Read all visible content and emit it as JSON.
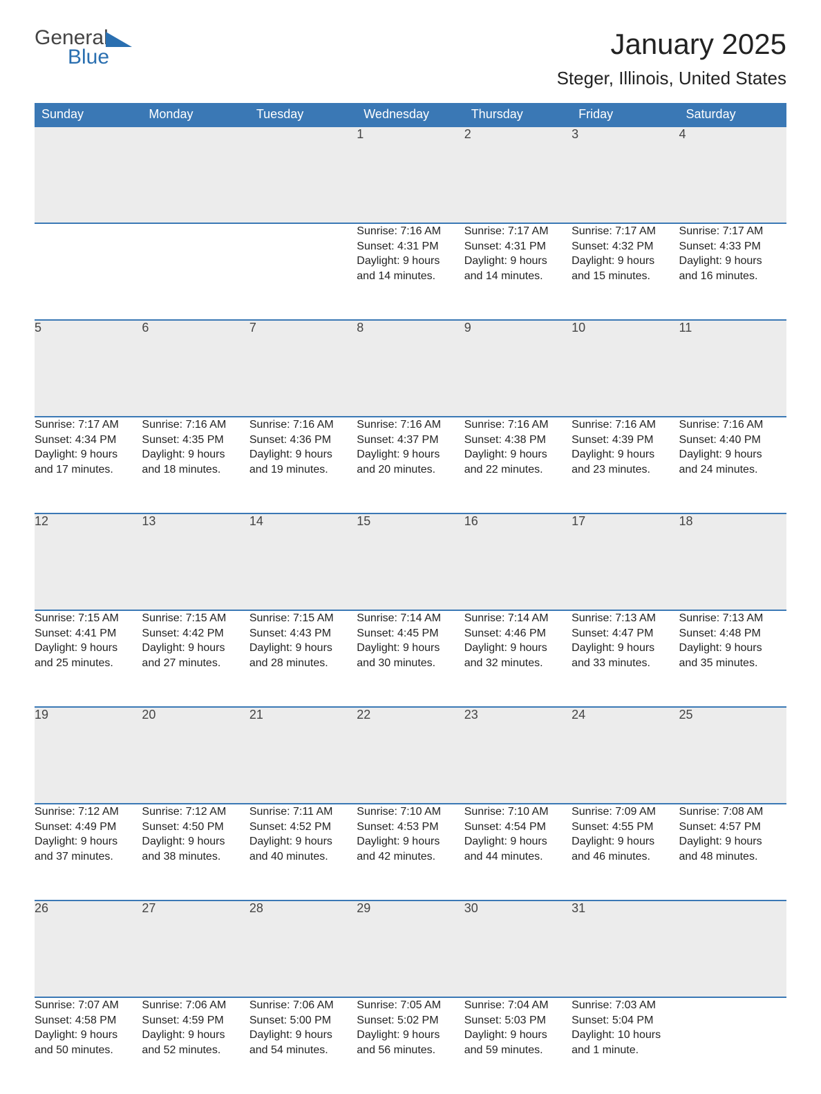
{
  "logo": {
    "word1": "General",
    "word2": "Blue"
  },
  "title": "January 2025",
  "location": "Steger, Illinois, United States",
  "colors": {
    "header_bg": "#3a78b5",
    "header_text": "#ffffff",
    "daynum_bg": "#ececec",
    "border": "#3a78b5",
    "body_text": "#222222",
    "logo_blue": "#2a6fb0",
    "logo_gray": "#444444",
    "page_bg": "#ffffff"
  },
  "day_headers": [
    "Sunday",
    "Monday",
    "Tuesday",
    "Wednesday",
    "Thursday",
    "Friday",
    "Saturday"
  ],
  "weeks": [
    [
      null,
      null,
      null,
      {
        "n": "1",
        "sunrise": "Sunrise: 7:16 AM",
        "sunset": "Sunset: 4:31 PM",
        "d1": "Daylight: 9 hours",
        "d2": "and 14 minutes."
      },
      {
        "n": "2",
        "sunrise": "Sunrise: 7:17 AM",
        "sunset": "Sunset: 4:31 PM",
        "d1": "Daylight: 9 hours",
        "d2": "and 14 minutes."
      },
      {
        "n": "3",
        "sunrise": "Sunrise: 7:17 AM",
        "sunset": "Sunset: 4:32 PM",
        "d1": "Daylight: 9 hours",
        "d2": "and 15 minutes."
      },
      {
        "n": "4",
        "sunrise": "Sunrise: 7:17 AM",
        "sunset": "Sunset: 4:33 PM",
        "d1": "Daylight: 9 hours",
        "d2": "and 16 minutes."
      }
    ],
    [
      {
        "n": "5",
        "sunrise": "Sunrise: 7:17 AM",
        "sunset": "Sunset: 4:34 PM",
        "d1": "Daylight: 9 hours",
        "d2": "and 17 minutes."
      },
      {
        "n": "6",
        "sunrise": "Sunrise: 7:16 AM",
        "sunset": "Sunset: 4:35 PM",
        "d1": "Daylight: 9 hours",
        "d2": "and 18 minutes."
      },
      {
        "n": "7",
        "sunrise": "Sunrise: 7:16 AM",
        "sunset": "Sunset: 4:36 PM",
        "d1": "Daylight: 9 hours",
        "d2": "and 19 minutes."
      },
      {
        "n": "8",
        "sunrise": "Sunrise: 7:16 AM",
        "sunset": "Sunset: 4:37 PM",
        "d1": "Daylight: 9 hours",
        "d2": "and 20 minutes."
      },
      {
        "n": "9",
        "sunrise": "Sunrise: 7:16 AM",
        "sunset": "Sunset: 4:38 PM",
        "d1": "Daylight: 9 hours",
        "d2": "and 22 minutes."
      },
      {
        "n": "10",
        "sunrise": "Sunrise: 7:16 AM",
        "sunset": "Sunset: 4:39 PM",
        "d1": "Daylight: 9 hours",
        "d2": "and 23 minutes."
      },
      {
        "n": "11",
        "sunrise": "Sunrise: 7:16 AM",
        "sunset": "Sunset: 4:40 PM",
        "d1": "Daylight: 9 hours",
        "d2": "and 24 minutes."
      }
    ],
    [
      {
        "n": "12",
        "sunrise": "Sunrise: 7:15 AM",
        "sunset": "Sunset: 4:41 PM",
        "d1": "Daylight: 9 hours",
        "d2": "and 25 minutes."
      },
      {
        "n": "13",
        "sunrise": "Sunrise: 7:15 AM",
        "sunset": "Sunset: 4:42 PM",
        "d1": "Daylight: 9 hours",
        "d2": "and 27 minutes."
      },
      {
        "n": "14",
        "sunrise": "Sunrise: 7:15 AM",
        "sunset": "Sunset: 4:43 PM",
        "d1": "Daylight: 9 hours",
        "d2": "and 28 minutes."
      },
      {
        "n": "15",
        "sunrise": "Sunrise: 7:14 AM",
        "sunset": "Sunset: 4:45 PM",
        "d1": "Daylight: 9 hours",
        "d2": "and 30 minutes."
      },
      {
        "n": "16",
        "sunrise": "Sunrise: 7:14 AM",
        "sunset": "Sunset: 4:46 PM",
        "d1": "Daylight: 9 hours",
        "d2": "and 32 minutes."
      },
      {
        "n": "17",
        "sunrise": "Sunrise: 7:13 AM",
        "sunset": "Sunset: 4:47 PM",
        "d1": "Daylight: 9 hours",
        "d2": "and 33 minutes."
      },
      {
        "n": "18",
        "sunrise": "Sunrise: 7:13 AM",
        "sunset": "Sunset: 4:48 PM",
        "d1": "Daylight: 9 hours",
        "d2": "and 35 minutes."
      }
    ],
    [
      {
        "n": "19",
        "sunrise": "Sunrise: 7:12 AM",
        "sunset": "Sunset: 4:49 PM",
        "d1": "Daylight: 9 hours",
        "d2": "and 37 minutes."
      },
      {
        "n": "20",
        "sunrise": "Sunrise: 7:12 AM",
        "sunset": "Sunset: 4:50 PM",
        "d1": "Daylight: 9 hours",
        "d2": "and 38 minutes."
      },
      {
        "n": "21",
        "sunrise": "Sunrise: 7:11 AM",
        "sunset": "Sunset: 4:52 PM",
        "d1": "Daylight: 9 hours",
        "d2": "and 40 minutes."
      },
      {
        "n": "22",
        "sunrise": "Sunrise: 7:10 AM",
        "sunset": "Sunset: 4:53 PM",
        "d1": "Daylight: 9 hours",
        "d2": "and 42 minutes."
      },
      {
        "n": "23",
        "sunrise": "Sunrise: 7:10 AM",
        "sunset": "Sunset: 4:54 PM",
        "d1": "Daylight: 9 hours",
        "d2": "and 44 minutes."
      },
      {
        "n": "24",
        "sunrise": "Sunrise: 7:09 AM",
        "sunset": "Sunset: 4:55 PM",
        "d1": "Daylight: 9 hours",
        "d2": "and 46 minutes."
      },
      {
        "n": "25",
        "sunrise": "Sunrise: 7:08 AM",
        "sunset": "Sunset: 4:57 PM",
        "d1": "Daylight: 9 hours",
        "d2": "and 48 minutes."
      }
    ],
    [
      {
        "n": "26",
        "sunrise": "Sunrise: 7:07 AM",
        "sunset": "Sunset: 4:58 PM",
        "d1": "Daylight: 9 hours",
        "d2": "and 50 minutes."
      },
      {
        "n": "27",
        "sunrise": "Sunrise: 7:06 AM",
        "sunset": "Sunset: 4:59 PM",
        "d1": "Daylight: 9 hours",
        "d2": "and 52 minutes."
      },
      {
        "n": "28",
        "sunrise": "Sunrise: 7:06 AM",
        "sunset": "Sunset: 5:00 PM",
        "d1": "Daylight: 9 hours",
        "d2": "and 54 minutes."
      },
      {
        "n": "29",
        "sunrise": "Sunrise: 7:05 AM",
        "sunset": "Sunset: 5:02 PM",
        "d1": "Daylight: 9 hours",
        "d2": "and 56 minutes."
      },
      {
        "n": "30",
        "sunrise": "Sunrise: 7:04 AM",
        "sunset": "Sunset: 5:03 PM",
        "d1": "Daylight: 9 hours",
        "d2": "and 59 minutes."
      },
      {
        "n": "31",
        "sunrise": "Sunrise: 7:03 AM",
        "sunset": "Sunset: 5:04 PM",
        "d1": "Daylight: 10 hours",
        "d2": "and 1 minute."
      },
      null
    ]
  ]
}
